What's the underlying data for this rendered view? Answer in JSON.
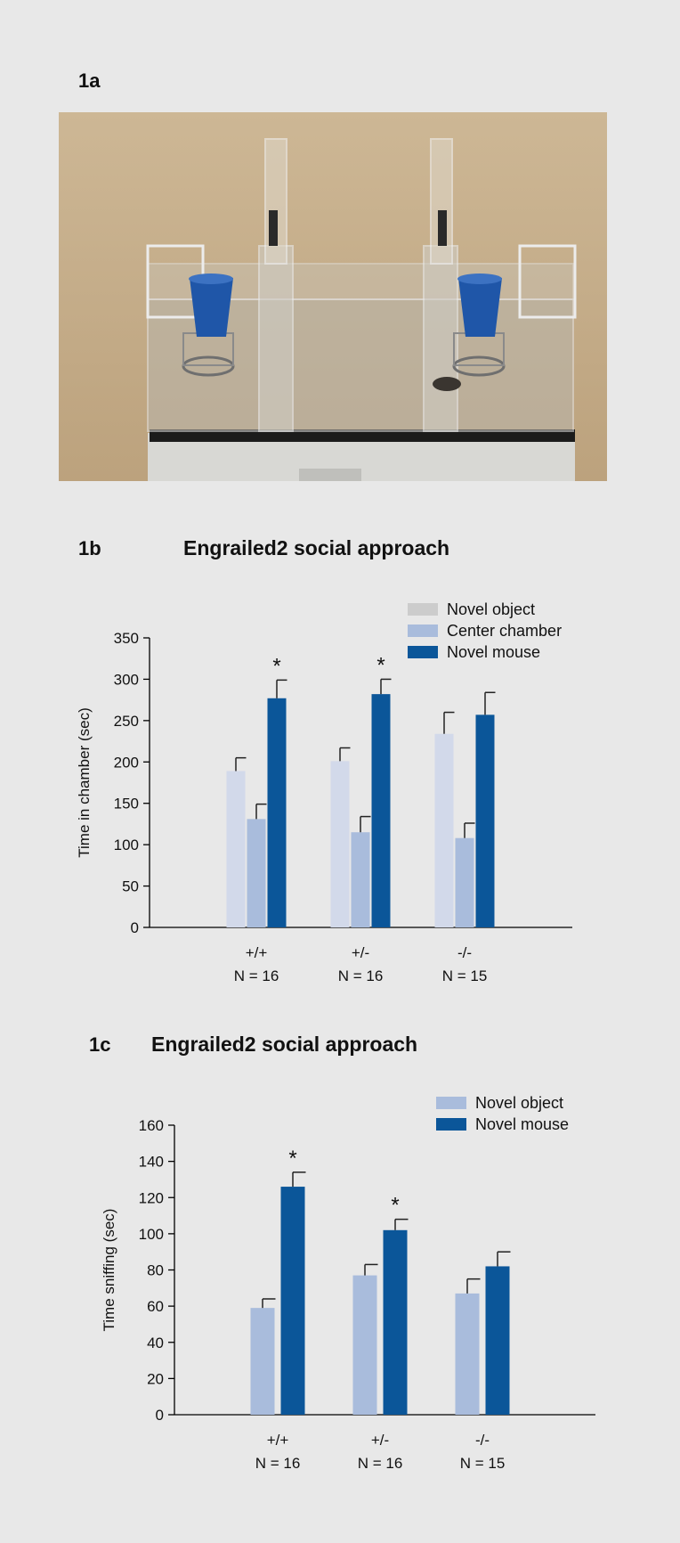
{
  "panel_a": {
    "label": "1a"
  },
  "panel_b": {
    "label": "1b",
    "title": "Engrailed2 social approach"
  },
  "panel_c": {
    "label": "1c",
    "title": "Engrailed2 social approach"
  },
  "colors": {
    "novel_object_b": "#d2d9ea",
    "center_chamber": "#a9bcdc",
    "novel_mouse": "#0b5699",
    "novel_object_c": "#a9bcdc",
    "legend_novel_object_b": "#cccccc"
  },
  "chart_data": [
    {
      "type": "bar",
      "panel": "1b",
      "title": "Engrailed2 social approach",
      "ylabel": "Time in chamber (sec)",
      "xlabel": "",
      "ylim": [
        0,
        350
      ],
      "yticks": [
        "0",
        "50",
        "100",
        "150",
        "200",
        "250",
        "300",
        "350"
      ],
      "categories": [
        "+/+",
        "+/-",
        "-/-"
      ],
      "sample_sizes": [
        "N = 16",
        "N = 16",
        "N = 15"
      ],
      "legend_position": "top-right",
      "series": [
        {
          "name": "Novel object",
          "values": [
            189,
            201,
            234
          ],
          "errors": [
            16,
            16,
            26
          ],
          "stars": [
            "",
            "",
            ""
          ]
        },
        {
          "name": "Center chamber",
          "values": [
            131,
            115,
            108
          ],
          "errors": [
            18,
            19,
            18
          ],
          "stars": [
            "",
            "",
            ""
          ]
        },
        {
          "name": "Novel mouse",
          "values": [
            277,
            282,
            257
          ],
          "errors": [
            22,
            18,
            27
          ],
          "stars": [
            "*",
            "*",
            ""
          ]
        }
      ]
    },
    {
      "type": "bar",
      "panel": "1c",
      "title": "Engrailed2 social approach",
      "ylabel": "Time sniffing (sec)",
      "xlabel": "",
      "ylim": [
        0,
        160
      ],
      "yticks": [
        "0",
        "20",
        "40",
        "60",
        "80",
        "100",
        "120",
        "140",
        "160"
      ],
      "categories": [
        "+/+",
        "+/-",
        "-/-"
      ],
      "sample_sizes": [
        "N = 16",
        "N = 16",
        "N = 15"
      ],
      "legend_position": "top-right",
      "series": [
        {
          "name": "Novel object",
          "values": [
            59,
            77,
            67
          ],
          "errors": [
            5,
            6,
            8
          ],
          "stars": [
            "",
            "",
            ""
          ]
        },
        {
          "name": "Novel mouse",
          "values": [
            126,
            102,
            82
          ],
          "errors": [
            8,
            6,
            8
          ],
          "stars": [
            "*",
            "*",
            ""
          ]
        }
      ]
    }
  ]
}
